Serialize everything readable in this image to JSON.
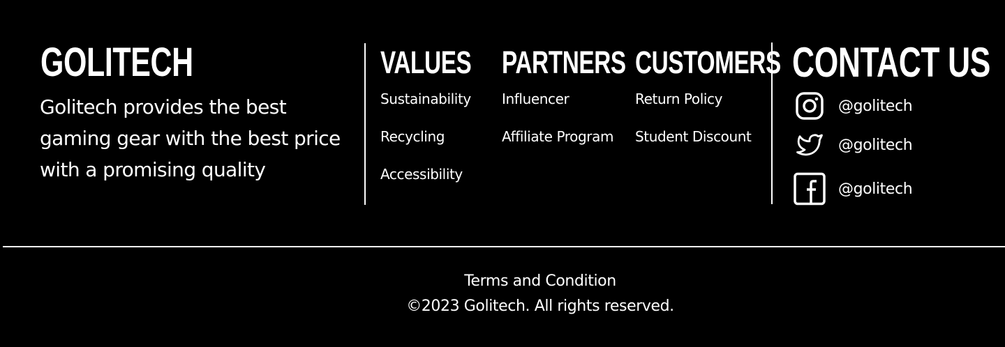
{
  "brand": {
    "name": "GOLITECH",
    "tagline": "Golitech provides the best gaming gear with the best price with a promising quality"
  },
  "columns": [
    {
      "title": "VALUES",
      "links": [
        "Sustainability",
        "Recycling",
        "Accessibility"
      ]
    },
    {
      "title": "PARTNERS",
      "links": [
        "Influencer",
        "Affiliate Program"
      ]
    },
    {
      "title": "CUSTOMERS",
      "links": [
        "Return Policy",
        "Student Discount"
      ]
    }
  ],
  "contact": {
    "title": "CONTACT US",
    "socials": [
      {
        "icon": "instagram-icon",
        "handle": "@golitech"
      },
      {
        "icon": "twitter-icon",
        "handle": "@golitech"
      },
      {
        "icon": "facebook-icon",
        "handle": "@golitech"
      }
    ]
  },
  "bottom": {
    "terms_label": "Terms and Condition",
    "copyright": "©2023 Golitech. All rights reserved."
  },
  "colors": {
    "background": "#000000",
    "foreground": "#ffffff"
  }
}
